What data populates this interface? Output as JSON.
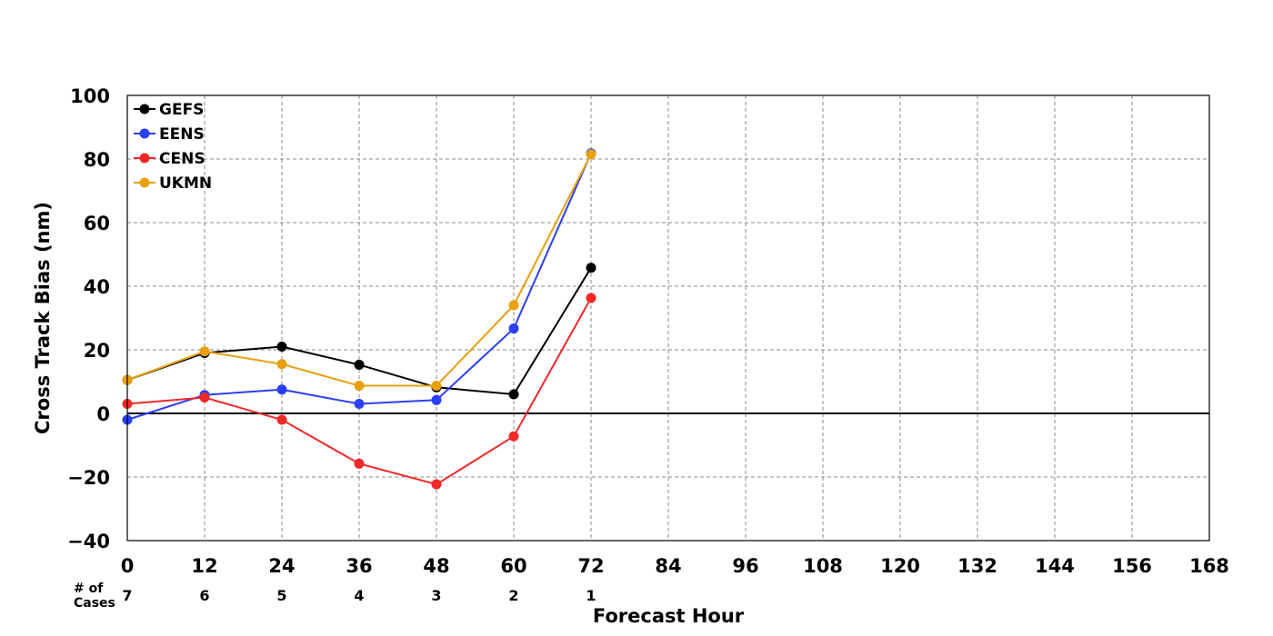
{
  "chart_data": {
    "type": "line",
    "title": "",
    "xlabel": "Forecast Hour",
    "ylabel": "Cross Track Bias (nm)",
    "xlim": [
      0,
      168
    ],
    "ylim": [
      -40,
      100
    ],
    "xticks": [
      0,
      12,
      24,
      36,
      48,
      60,
      72,
      84,
      96,
      108,
      120,
      132,
      144,
      156,
      168
    ],
    "yticks": [
      100,
      80,
      60,
      40,
      20,
      0,
      -20,
      -40
    ],
    "ytick_labels": [
      "100",
      "80",
      "60",
      "40",
      "20",
      "0",
      "−20",
      "−40"
    ],
    "grid": true,
    "zero_line": true,
    "legend_position": "top-left",
    "cases_label": [
      "# of",
      "Cases"
    ],
    "cases": [
      {
        "hour": 0,
        "count": "7"
      },
      {
        "hour": 12,
        "count": "6"
      },
      {
        "hour": 24,
        "count": "5"
      },
      {
        "hour": 36,
        "count": "4"
      },
      {
        "hour": 48,
        "count": "3"
      },
      {
        "hour": 60,
        "count": "2"
      },
      {
        "hour": 72,
        "count": "1"
      }
    ],
    "x": [
      0,
      12,
      24,
      36,
      48,
      60,
      72
    ],
    "series": [
      {
        "name": "GEFS",
        "color": "#000000",
        "values": [
          10.5,
          19,
          21,
          15.3,
          8.2,
          6,
          45.8
        ]
      },
      {
        "name": "EENS",
        "color": "#2a3ff5",
        "values": [
          -2,
          5.8,
          7.5,
          3,
          4.2,
          26.7,
          81.8
        ]
      },
      {
        "name": "CENS",
        "color": "#f02828",
        "values": [
          3,
          5,
          -2,
          -15.8,
          -22.3,
          -7.2,
          36.3
        ]
      },
      {
        "name": "UKMN",
        "color": "#e8a010",
        "values": [
          10.5,
          19.5,
          15.5,
          8.7,
          8.7,
          34,
          81.5
        ]
      }
    ]
  }
}
